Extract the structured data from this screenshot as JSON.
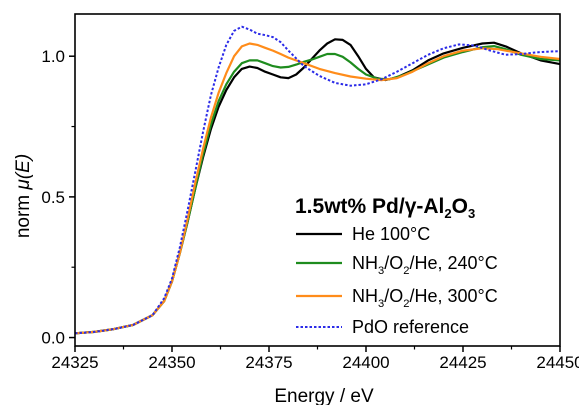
{
  "chart_data": {
    "type": "line",
    "xlabel": "Energy / eV",
    "ylabel_prefix": "norm ",
    "ylabel_var": "μ(E)",
    "xlim": [
      24325,
      24450
    ],
    "ylim": [
      -0.03,
      1.15
    ],
    "xticks": [
      24325,
      24350,
      24375,
      24400,
      24425,
      24450
    ],
    "yticks": [
      0.0,
      0.5,
      1.0
    ],
    "ytick_labels": [
      "0.0",
      "0.5",
      "1.0"
    ],
    "legend": {
      "title_parts": [
        "1.5wt% Pd/",
        "γ",
        "-Al",
        "2",
        "O",
        "3"
      ],
      "placement": "lower-right"
    },
    "series": [
      {
        "key": "he100",
        "label_parts": [
          "He 100°C"
        ],
        "color": "#000000",
        "style": "solid",
        "points": [
          [
            24325,
            0.015
          ],
          [
            24330,
            0.02
          ],
          [
            24335,
            0.03
          ],
          [
            24340,
            0.045
          ],
          [
            24345,
            0.08
          ],
          [
            24348,
            0.13
          ],
          [
            24350,
            0.2
          ],
          [
            24352,
            0.3
          ],
          [
            24354,
            0.41
          ],
          [
            24356,
            0.53
          ],
          [
            24358,
            0.64
          ],
          [
            24360,
            0.74
          ],
          [
            24362,
            0.82
          ],
          [
            24364,
            0.88
          ],
          [
            24366,
            0.925
          ],
          [
            24368,
            0.955
          ],
          [
            24370,
            0.963
          ],
          [
            24372,
            0.958
          ],
          [
            24374,
            0.945
          ],
          [
            24376,
            0.935
          ],
          [
            24378,
            0.925
          ],
          [
            24380,
            0.922
          ],
          [
            24382,
            0.935
          ],
          [
            24384,
            0.96
          ],
          [
            24386,
            0.99
          ],
          [
            24388,
            1.02
          ],
          [
            24390,
            1.045
          ],
          [
            24392,
            1.06
          ],
          [
            24394,
            1.058
          ],
          [
            24396,
            1.04
          ],
          [
            24398,
            1.0
          ],
          [
            24400,
            0.955
          ],
          [
            24402,
            0.925
          ],
          [
            24405,
            0.915
          ],
          [
            24408,
            0.925
          ],
          [
            24412,
            0.95
          ],
          [
            24416,
            0.985
          ],
          [
            24420,
            1.01
          ],
          [
            24425,
            1.03
          ],
          [
            24430,
            1.045
          ],
          [
            24433,
            1.048
          ],
          [
            24436,
            1.035
          ],
          [
            24440,
            1.01
          ],
          [
            24445,
            0.985
          ],
          [
            24450,
            0.972
          ]
        ]
      },
      {
        "key": "nh3_240",
        "label_parts": [
          "NH",
          "3",
          "/O",
          "2",
          "/He, 240°C"
        ],
        "color": "#1e8c1e",
        "style": "solid",
        "points": [
          [
            24325,
            0.015
          ],
          [
            24330,
            0.02
          ],
          [
            24335,
            0.03
          ],
          [
            24340,
            0.045
          ],
          [
            24345,
            0.08
          ],
          [
            24348,
            0.13
          ],
          [
            24350,
            0.2
          ],
          [
            24352,
            0.3
          ],
          [
            24354,
            0.41
          ],
          [
            24356,
            0.53
          ],
          [
            24358,
            0.65
          ],
          [
            24360,
            0.755
          ],
          [
            24362,
            0.84
          ],
          [
            24364,
            0.9
          ],
          [
            24366,
            0.945
          ],
          [
            24368,
            0.975
          ],
          [
            24370,
            0.985
          ],
          [
            24372,
            0.985
          ],
          [
            24374,
            0.975
          ],
          [
            24376,
            0.965
          ],
          [
            24378,
            0.96
          ],
          [
            24380,
            0.962
          ],
          [
            24382,
            0.97
          ],
          [
            24384,
            0.98
          ],
          [
            24386,
            0.988
          ],
          [
            24388,
            0.998
          ],
          [
            24390,
            1.008
          ],
          [
            24392,
            1.008
          ],
          [
            24394,
            0.998
          ],
          [
            24396,
            0.978
          ],
          [
            24398,
            0.955
          ],
          [
            24400,
            0.935
          ],
          [
            24403,
            0.92
          ],
          [
            24406,
            0.918
          ],
          [
            24410,
            0.935
          ],
          [
            24415,
            0.965
          ],
          [
            24420,
            0.995
          ],
          [
            24425,
            1.015
          ],
          [
            24430,
            1.032
          ],
          [
            24433,
            1.036
          ],
          [
            24436,
            1.025
          ],
          [
            24440,
            1.005
          ],
          [
            24445,
            0.99
          ],
          [
            24450,
            0.985
          ]
        ]
      },
      {
        "key": "nh3_300",
        "label_parts": [
          "NH",
          "3",
          "/O",
          "2",
          "/He, 300°C"
        ],
        "color": "#ff8c1a",
        "style": "solid",
        "points": [
          [
            24325,
            0.015
          ],
          [
            24330,
            0.02
          ],
          [
            24335,
            0.03
          ],
          [
            24340,
            0.045
          ],
          [
            24345,
            0.08
          ],
          [
            24348,
            0.13
          ],
          [
            24350,
            0.2
          ],
          [
            24352,
            0.3
          ],
          [
            24354,
            0.42
          ],
          [
            24356,
            0.55
          ],
          [
            24358,
            0.67
          ],
          [
            24360,
            0.78
          ],
          [
            24362,
            0.87
          ],
          [
            24364,
            0.94
          ],
          [
            24366,
            1.0
          ],
          [
            24368,
            1.035
          ],
          [
            24370,
            1.045
          ],
          [
            24372,
            1.04
          ],
          [
            24374,
            1.03
          ],
          [
            24376,
            1.02
          ],
          [
            24378,
            1.008
          ],
          [
            24380,
            0.995
          ],
          [
            24384,
            0.975
          ],
          [
            24388,
            0.955
          ],
          [
            24392,
            0.94
          ],
          [
            24396,
            0.928
          ],
          [
            24400,
            0.92
          ],
          [
            24404,
            0.915
          ],
          [
            24408,
            0.922
          ],
          [
            24412,
            0.945
          ],
          [
            24416,
            0.975
          ],
          [
            24420,
            1.0
          ],
          [
            24425,
            1.02
          ],
          [
            24430,
            1.028
          ],
          [
            24434,
            1.025
          ],
          [
            24440,
            1.01
          ],
          [
            24445,
            0.998
          ],
          [
            24450,
            0.99
          ]
        ]
      },
      {
        "key": "pdo_ref",
        "label_parts": [
          "PdO reference"
        ],
        "color": "#2b2be8",
        "style": "dotted",
        "points": [
          [
            24325,
            0.015
          ],
          [
            24330,
            0.02
          ],
          [
            24335,
            0.03
          ],
          [
            24340,
            0.045
          ],
          [
            24345,
            0.08
          ],
          [
            24348,
            0.14
          ],
          [
            24350,
            0.21
          ],
          [
            24352,
            0.32
          ],
          [
            24354,
            0.45
          ],
          [
            24356,
            0.59
          ],
          [
            24358,
            0.73
          ],
          [
            24360,
            0.86
          ],
          [
            24362,
            0.96
          ],
          [
            24364,
            1.04
          ],
          [
            24366,
            1.09
          ],
          [
            24368,
            1.105
          ],
          [
            24370,
            1.095
          ],
          [
            24372,
            1.08
          ],
          [
            24374,
            1.075
          ],
          [
            24376,
            1.068
          ],
          [
            24378,
            1.05
          ],
          [
            24380,
            1.02
          ],
          [
            24384,
            0.965
          ],
          [
            24388,
            0.93
          ],
          [
            24392,
            0.905
          ],
          [
            24396,
            0.895
          ],
          [
            24400,
            0.9
          ],
          [
            24404,
            0.918
          ],
          [
            24408,
            0.945
          ],
          [
            24412,
            0.975
          ],
          [
            24416,
            1.005
          ],
          [
            24420,
            1.028
          ],
          [
            24424,
            1.042
          ],
          [
            24428,
            1.038
          ],
          [
            24432,
            1.02
          ],
          [
            24436,
            1.005
          ],
          [
            24440,
            1.008
          ],
          [
            24445,
            1.015
          ],
          [
            24450,
            1.018
          ]
        ]
      }
    ]
  }
}
